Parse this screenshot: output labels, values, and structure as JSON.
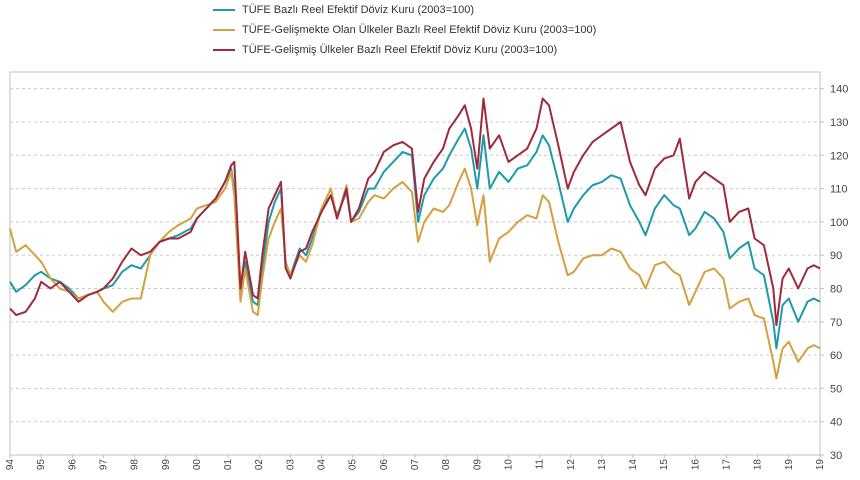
{
  "chart_data": {
    "type": "line",
    "x_labels": [
      "94",
      "95",
      "96",
      "97",
      "98",
      "99",
      "00",
      "01",
      "02",
      "03",
      "04",
      "05",
      "06",
      "07",
      "08",
      "09",
      "10",
      "11",
      "12",
      "13",
      "14",
      "15",
      "16",
      "17",
      "18",
      "19",
      "19"
    ],
    "ylim": [
      30,
      145
    ],
    "yticks": [
      30,
      40,
      50,
      60,
      70,
      80,
      90,
      100,
      110,
      120,
      130,
      140
    ],
    "grid": true,
    "legend_position": "top",
    "series": [
      {
        "name": "TÜFE  Bazlı Reel Efektif Döviz Kuru (2003=100)",
        "color": "#1f9aaa",
        "points": [
          [
            1994.0,
            82
          ],
          [
            1994.2,
            79
          ],
          [
            1994.5,
            81
          ],
          [
            1994.8,
            84
          ],
          [
            1995.0,
            85
          ],
          [
            1995.3,
            83
          ],
          [
            1995.6,
            82
          ],
          [
            1995.9,
            80
          ],
          [
            1996.2,
            77
          ],
          [
            1996.5,
            78
          ],
          [
            1996.8,
            79
          ],
          [
            1997.0,
            80
          ],
          [
            1997.3,
            81
          ],
          [
            1997.6,
            85
          ],
          [
            1997.9,
            87
          ],
          [
            1998.2,
            86
          ],
          [
            1998.5,
            90
          ],
          [
            1998.8,
            94
          ],
          [
            1999.1,
            95
          ],
          [
            1999.4,
            96
          ],
          [
            1999.8,
            98
          ],
          [
            2000.0,
            101
          ],
          [
            2000.3,
            104
          ],
          [
            2000.6,
            107
          ],
          [
            2000.9,
            112
          ],
          [
            2001.1,
            116
          ],
          [
            2001.2,
            110
          ],
          [
            2001.4,
            79
          ],
          [
            2001.55,
            88
          ],
          [
            2001.8,
            76
          ],
          [
            2001.95,
            75
          ],
          [
            2002.1,
            86
          ],
          [
            2002.3,
            100
          ],
          [
            2002.5,
            106
          ],
          [
            2002.7,
            110
          ],
          [
            2002.85,
            86
          ],
          [
            2003.0,
            84
          ],
          [
            2003.3,
            92
          ],
          [
            2003.5,
            90
          ],
          [
            2003.7,
            95
          ],
          [
            2004.0,
            104
          ],
          [
            2004.3,
            108
          ],
          [
            2004.5,
            102
          ],
          [
            2004.8,
            109
          ],
          [
            2004.95,
            100
          ],
          [
            2005.2,
            103
          ],
          [
            2005.5,
            110
          ],
          [
            2005.7,
            110
          ],
          [
            2006.0,
            115
          ],
          [
            2006.3,
            118
          ],
          [
            2006.6,
            121
          ],
          [
            2006.9,
            120
          ],
          [
            2007.1,
            100
          ],
          [
            2007.3,
            108
          ],
          [
            2007.6,
            113
          ],
          [
            2007.9,
            116
          ],
          [
            2008.1,
            120
          ],
          [
            2008.4,
            125
          ],
          [
            2008.6,
            128
          ],
          [
            2008.8,
            122
          ],
          [
            2009.0,
            110
          ],
          [
            2009.2,
            126
          ],
          [
            2009.4,
            110
          ],
          [
            2009.7,
            115
          ],
          [
            2010.0,
            112
          ],
          [
            2010.3,
            116
          ],
          [
            2010.6,
            117
          ],
          [
            2010.9,
            121
          ],
          [
            2011.1,
            126
          ],
          [
            2011.3,
            123
          ],
          [
            2011.6,
            112
          ],
          [
            2011.9,
            100
          ],
          [
            2012.1,
            104
          ],
          [
            2012.4,
            108
          ],
          [
            2012.7,
            111
          ],
          [
            2013.0,
            112
          ],
          [
            2013.3,
            114
          ],
          [
            2013.6,
            113
          ],
          [
            2013.9,
            105
          ],
          [
            2014.2,
            100
          ],
          [
            2014.4,
            96
          ],
          [
            2014.7,
            104
          ],
          [
            2015.0,
            108
          ],
          [
            2015.3,
            105
          ],
          [
            2015.5,
            104
          ],
          [
            2015.8,
            96
          ],
          [
            2016.0,
            98
          ],
          [
            2016.3,
            103
          ],
          [
            2016.6,
            101
          ],
          [
            2016.9,
            97
          ],
          [
            2017.1,
            89
          ],
          [
            2017.4,
            92
          ],
          [
            2017.7,
            94
          ],
          [
            2017.9,
            86
          ],
          [
            2018.2,
            84
          ],
          [
            2018.5,
            70
          ],
          [
            2018.6,
            62
          ],
          [
            2018.8,
            75
          ],
          [
            2019.0,
            77
          ],
          [
            2019.3,
            70
          ],
          [
            2019.6,
            76
          ],
          [
            2019.8,
            77
          ],
          [
            2020.0,
            76
          ]
        ]
      },
      {
        "name": "TÜFE-Gelişmekte Olan Ülkeler Bazlı Reel Efektif Döviz Kuru (2003=100)",
        "color": "#d4a040",
        "points": [
          [
            1994.0,
            98
          ],
          [
            1994.2,
            91
          ],
          [
            1994.5,
            93
          ],
          [
            1994.8,
            90
          ],
          [
            1995.0,
            88
          ],
          [
            1995.3,
            83
          ],
          [
            1995.6,
            80
          ],
          [
            1995.9,
            79
          ],
          [
            1996.2,
            77
          ],
          [
            1996.5,
            78
          ],
          [
            1996.8,
            79
          ],
          [
            1997.0,
            76
          ],
          [
            1997.3,
            73
          ],
          [
            1997.6,
            76
          ],
          [
            1997.9,
            77
          ],
          [
            1998.2,
            77
          ],
          [
            1998.5,
            90
          ],
          [
            1998.8,
            94
          ],
          [
            1999.1,
            97
          ],
          [
            1999.4,
            99
          ],
          [
            1999.8,
            101
          ],
          [
            2000.0,
            104
          ],
          [
            2000.3,
            105
          ],
          [
            2000.6,
            106
          ],
          [
            2000.9,
            110
          ],
          [
            2001.1,
            115
          ],
          [
            2001.2,
            108
          ],
          [
            2001.4,
            76
          ],
          [
            2001.55,
            86
          ],
          [
            2001.8,
            73
          ],
          [
            2001.95,
            72
          ],
          [
            2002.1,
            83
          ],
          [
            2002.3,
            95
          ],
          [
            2002.5,
            100
          ],
          [
            2002.7,
            104
          ],
          [
            2002.85,
            88
          ],
          [
            2003.0,
            84
          ],
          [
            2003.3,
            90
          ],
          [
            2003.5,
            88
          ],
          [
            2003.7,
            93
          ],
          [
            2004.0,
            104
          ],
          [
            2004.3,
            110
          ],
          [
            2004.5,
            101
          ],
          [
            2004.8,
            111
          ],
          [
            2004.95,
            100
          ],
          [
            2005.2,
            101
          ],
          [
            2005.5,
            106
          ],
          [
            2005.7,
            108
          ],
          [
            2006.0,
            107
          ],
          [
            2006.3,
            110
          ],
          [
            2006.6,
            112
          ],
          [
            2006.9,
            109
          ],
          [
            2007.1,
            94
          ],
          [
            2007.3,
            100
          ],
          [
            2007.6,
            104
          ],
          [
            2007.9,
            103
          ],
          [
            2008.1,
            105
          ],
          [
            2008.4,
            112
          ],
          [
            2008.6,
            116
          ],
          [
            2008.8,
            110
          ],
          [
            2009.0,
            99
          ],
          [
            2009.2,
            108
          ],
          [
            2009.4,
            88
          ],
          [
            2009.7,
            95
          ],
          [
            2010.0,
            97
          ],
          [
            2010.3,
            100
          ],
          [
            2010.6,
            102
          ],
          [
            2010.9,
            101
          ],
          [
            2011.1,
            108
          ],
          [
            2011.3,
            106
          ],
          [
            2011.6,
            94
          ],
          [
            2011.9,
            84
          ],
          [
            2012.1,
            85
          ],
          [
            2012.4,
            89
          ],
          [
            2012.7,
            90
          ],
          [
            2013.0,
            90
          ],
          [
            2013.3,
            92
          ],
          [
            2013.6,
            91
          ],
          [
            2013.9,
            86
          ],
          [
            2014.2,
            84
          ],
          [
            2014.4,
            80
          ],
          [
            2014.7,
            87
          ],
          [
            2015.0,
            88
          ],
          [
            2015.3,
            85
          ],
          [
            2015.5,
            84
          ],
          [
            2015.8,
            75
          ],
          [
            2016.0,
            79
          ],
          [
            2016.3,
            85
          ],
          [
            2016.6,
            86
          ],
          [
            2016.9,
            83
          ],
          [
            2017.1,
            74
          ],
          [
            2017.4,
            76
          ],
          [
            2017.7,
            77
          ],
          [
            2017.9,
            72
          ],
          [
            2018.2,
            71
          ],
          [
            2018.5,
            58
          ],
          [
            2018.6,
            53
          ],
          [
            2018.8,
            62
          ],
          [
            2019.0,
            64
          ],
          [
            2019.3,
            58
          ],
          [
            2019.6,
            62
          ],
          [
            2019.8,
            63
          ],
          [
            2020.0,
            62
          ]
        ]
      },
      {
        "name": "TÜFE-Gelişmiş Ülkeler Bazlı Reel Efektif Döviz Kuru (2003=100)",
        "color": "#9e2a3c",
        "points": [
          [
            1994.0,
            74
          ],
          [
            1994.2,
            72
          ],
          [
            1994.5,
            73
          ],
          [
            1994.8,
            77
          ],
          [
            1995.0,
            82
          ],
          [
            1995.3,
            80
          ],
          [
            1995.6,
            82
          ],
          [
            1995.9,
            79
          ],
          [
            1996.2,
            76
          ],
          [
            1996.5,
            78
          ],
          [
            1996.8,
            79
          ],
          [
            1997.0,
            80
          ],
          [
            1997.3,
            83
          ],
          [
            1997.6,
            88
          ],
          [
            1997.9,
            92
          ],
          [
            1998.2,
            90
          ],
          [
            1998.5,
            91
          ],
          [
            1998.8,
            94
          ],
          [
            1999.1,
            95
          ],
          [
            1999.4,
            95
          ],
          [
            1999.8,
            97
          ],
          [
            2000.0,
            101
          ],
          [
            2000.3,
            104
          ],
          [
            2000.6,
            107
          ],
          [
            2000.9,
            112
          ],
          [
            2001.1,
            117
          ],
          [
            2001.2,
            118
          ],
          [
            2001.4,
            80
          ],
          [
            2001.55,
            91
          ],
          [
            2001.8,
            78
          ],
          [
            2001.95,
            77
          ],
          [
            2002.1,
            90
          ],
          [
            2002.3,
            104
          ],
          [
            2002.5,
            108
          ],
          [
            2002.7,
            112
          ],
          [
            2002.85,
            86
          ],
          [
            2003.0,
            83
          ],
          [
            2003.3,
            91
          ],
          [
            2003.5,
            92
          ],
          [
            2003.7,
            97
          ],
          [
            2004.0,
            103
          ],
          [
            2004.3,
            108
          ],
          [
            2004.5,
            101
          ],
          [
            2004.8,
            110
          ],
          [
            2004.95,
            100
          ],
          [
            2005.2,
            104
          ],
          [
            2005.5,
            113
          ],
          [
            2005.7,
            115
          ],
          [
            2006.0,
            121
          ],
          [
            2006.3,
            123
          ],
          [
            2006.6,
            124
          ],
          [
            2006.9,
            122
          ],
          [
            2007.1,
            103
          ],
          [
            2007.3,
            113
          ],
          [
            2007.6,
            118
          ],
          [
            2007.9,
            122
          ],
          [
            2008.1,
            128
          ],
          [
            2008.4,
            132
          ],
          [
            2008.6,
            135
          ],
          [
            2008.8,
            128
          ],
          [
            2009.0,
            116
          ],
          [
            2009.2,
            137
          ],
          [
            2009.4,
            122
          ],
          [
            2009.7,
            126
          ],
          [
            2010.0,
            118
          ],
          [
            2010.3,
            120
          ],
          [
            2010.6,
            122
          ],
          [
            2010.9,
            128
          ],
          [
            2011.1,
            137
          ],
          [
            2011.3,
            135
          ],
          [
            2011.6,
            123
          ],
          [
            2011.9,
            110
          ],
          [
            2012.1,
            115
          ],
          [
            2012.4,
            120
          ],
          [
            2012.7,
            124
          ],
          [
            2013.0,
            126
          ],
          [
            2013.3,
            128
          ],
          [
            2013.6,
            130
          ],
          [
            2013.9,
            118
          ],
          [
            2014.2,
            111
          ],
          [
            2014.4,
            108
          ],
          [
            2014.7,
            116
          ],
          [
            2015.0,
            119
          ],
          [
            2015.3,
            120
          ],
          [
            2015.5,
            125
          ],
          [
            2015.8,
            107
          ],
          [
            2016.0,
            112
          ],
          [
            2016.3,
            115
          ],
          [
            2016.6,
            113
          ],
          [
            2016.9,
            111
          ],
          [
            2017.1,
            100
          ],
          [
            2017.4,
            103
          ],
          [
            2017.7,
            104
          ],
          [
            2017.9,
            95
          ],
          [
            2018.2,
            93
          ],
          [
            2018.5,
            80
          ],
          [
            2018.6,
            69
          ],
          [
            2018.8,
            83
          ],
          [
            2019.0,
            86
          ],
          [
            2019.3,
            80
          ],
          [
            2019.6,
            86
          ],
          [
            2019.8,
            87
          ],
          [
            2020.0,
            86
          ]
        ]
      }
    ]
  }
}
